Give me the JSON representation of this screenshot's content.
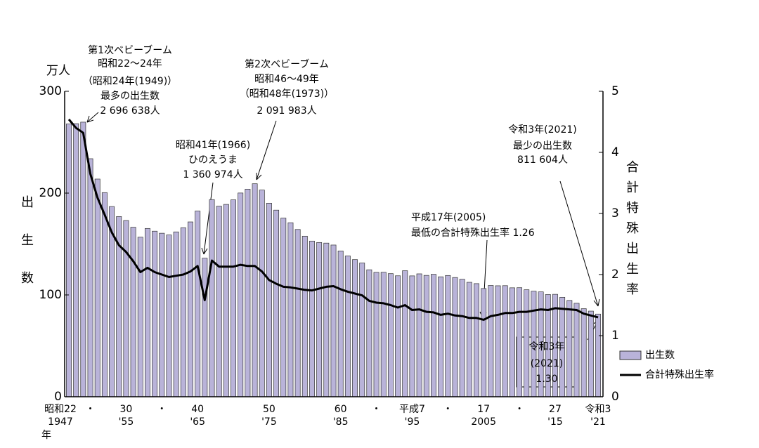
{
  "chart_data": {
    "type": "bar-line",
    "categories": [
      "昭和22",
      null,
      null,
      "・",
      null,
      null,
      null,
      null,
      "30",
      null,
      null,
      null,
      null,
      "・",
      null,
      null,
      null,
      null,
      "40",
      null,
      null,
      null,
      null,
      null,
      null,
      null,
      null,
      null,
      "50",
      null,
      null,
      null,
      null,
      null,
      null,
      null,
      null,
      null,
      "60",
      null,
      null,
      null,
      null,
      "・",
      null,
      null,
      null,
      null,
      "平成7",
      null,
      null,
      null,
      null,
      "・",
      null,
      null,
      null,
      null,
      "17",
      null,
      null,
      null,
      null,
      "・",
      null,
      null,
      null,
      null,
      "27",
      null,
      null,
      null,
      null,
      null,
      "令和3"
    ],
    "categories_2": [
      "1947",
      null,
      null,
      null,
      null,
      null,
      null,
      null,
      "'55",
      null,
      null,
      null,
      null,
      null,
      null,
      null,
      null,
      null,
      "'65",
      null,
      null,
      null,
      null,
      null,
      null,
      null,
      null,
      null,
      "'75",
      null,
      null,
      null,
      null,
      null,
      null,
      null,
      null,
      null,
      "'85",
      null,
      null,
      null,
      null,
      null,
      null,
      null,
      null,
      null,
      "'95",
      null,
      null,
      null,
      null,
      null,
      null,
      null,
      null,
      null,
      "2005",
      null,
      null,
      null,
      null,
      null,
      null,
      null,
      null,
      null,
      "'15",
      null,
      null,
      null,
      null,
      null,
      "'21"
    ],
    "x_unit": "年",
    "y_unit": "万人",
    "ylabel": "出生数",
    "y2label": "合計特殊出生率",
    "ylim": [
      0,
      300
    ],
    "yticks": [
      0,
      100,
      200,
      300
    ],
    "y2lim": [
      0,
      5
    ],
    "y2ticks": [
      0,
      1,
      2,
      3,
      4,
      5
    ],
    "series": [
      {
        "name": "出生数",
        "color": "#b9b3d9",
        "type": "bar",
        "values": [
          267.9,
          268.2,
          269.7,
          233.8,
          213.8,
          200.5,
          186.8,
          177.0,
          173.1,
          166.5,
          156.7,
          165.3,
          162.6,
          160.6,
          158.9,
          161.9,
          166.0,
          171.7,
          182.4,
          136.1,
          193.6,
          187.2,
          188.9,
          193.4,
          200.1,
          203.9,
          209.2,
          203.0,
          190.1,
          183.3,
          175.5,
          170.9,
          164.3,
          157.7,
          152.9,
          151.5,
          150.9,
          149.0,
          143.2,
          138.3,
          134.7,
          131.4,
          124.7,
          122.2,
          122.3,
          120.9,
          118.8,
          123.8,
          118.7,
          120.7,
          119.2,
          120.3,
          117.8,
          119.1,
          117.1,
          115.4,
          112.4,
          111.1,
          106.3,
          109.3,
          109.0,
          109.1,
          107.0,
          107.1,
          105.1,
          103.7,
          103.0,
          100.4,
          100.6,
          97.7,
          94.6,
          91.8,
          86.5,
          84.1,
          81.2
        ]
      },
      {
        "name": "合計特殊出生率",
        "color": "#000000",
        "type": "line",
        "axis": "y2",
        "values": [
          4.54,
          4.4,
          4.32,
          3.65,
          3.26,
          2.98,
          2.69,
          2.48,
          2.37,
          2.22,
          2.04,
          2.11,
          2.04,
          2.0,
          1.96,
          1.98,
          2.0,
          2.05,
          2.14,
          1.58,
          2.23,
          2.13,
          2.13,
          2.13,
          2.16,
          2.14,
          2.14,
          2.05,
          1.91,
          1.85,
          1.8,
          1.79,
          1.77,
          1.75,
          1.74,
          1.77,
          1.8,
          1.81,
          1.76,
          1.72,
          1.69,
          1.66,
          1.57,
          1.54,
          1.53,
          1.5,
          1.46,
          1.5,
          1.42,
          1.43,
          1.39,
          1.38,
          1.34,
          1.36,
          1.33,
          1.32,
          1.29,
          1.29,
          1.26,
          1.32,
          1.34,
          1.37,
          1.37,
          1.39,
          1.39,
          1.41,
          1.43,
          1.42,
          1.45,
          1.44,
          1.43,
          1.42,
          1.36,
          1.33,
          1.3
        ]
      }
    ],
    "annotations": [
      [
        "第1次ベビーブーム",
        "昭和22～24年",
        "（昭和24年(1949)）",
        "最多の出生数",
        "2 696 638人"
      ],
      [
        "昭和41年(1966)",
        "ひのえうま",
        "1 360 974人"
      ],
      [
        "第2次ベビーブーム",
        "昭和46～49年",
        "（昭和48年(1973)）",
        "2 091 983人"
      ],
      [
        "平成17年(2005)",
        "最低の合計特殊出生率 1.26"
      ],
      [
        "令和3年(2021)",
        "最少の出生数",
        "811 604人"
      ],
      [
        "令和3年",
        "(2021)",
        "1.30"
      ]
    ]
  }
}
